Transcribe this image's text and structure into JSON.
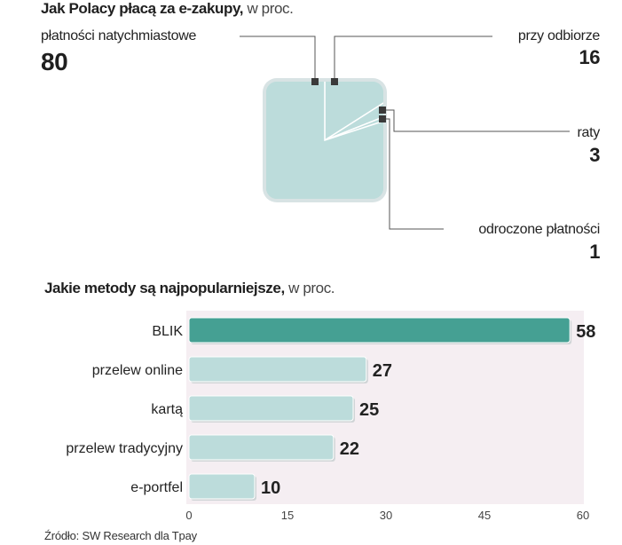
{
  "chart_data": [
    {
      "type": "pie",
      "title": "Jak Polacy płacą za e-zakupy,",
      "subtitle": "w proc.",
      "slices": [
        {
          "label": "płatności natychmiastowe",
          "value": 80
        },
        {
          "label": "przy odbiorze",
          "value": 16
        },
        {
          "label": "raty",
          "value": 3
        },
        {
          "label": "odroczone płatności",
          "value": 1
        }
      ],
      "colors": {
        "fill": "#bcdcdb",
        "stroke": "#ffffff"
      }
    },
    {
      "type": "bar",
      "orientation": "horizontal",
      "title": "Jakie metody są najpopularniejsze,",
      "subtitle": "w proc.",
      "categories": [
        "BLIK",
        "przelew online",
        "kartą",
        "przelew tradycyjny",
        "e-portfel"
      ],
      "values": [
        58,
        27,
        25,
        22,
        10
      ],
      "value_labels": [
        "58",
        "27",
        "25",
        "22",
        "10"
      ],
      "xlim": [
        0,
        60
      ],
      "xticks": [
        "0",
        "15",
        "30",
        "45",
        "60"
      ],
      "colors": {
        "highlight": "#45a093",
        "bar": "#bcdcdb",
        "background": "#f5eef2"
      }
    }
  ],
  "source": "Źródło: SW Research dla Tpay"
}
